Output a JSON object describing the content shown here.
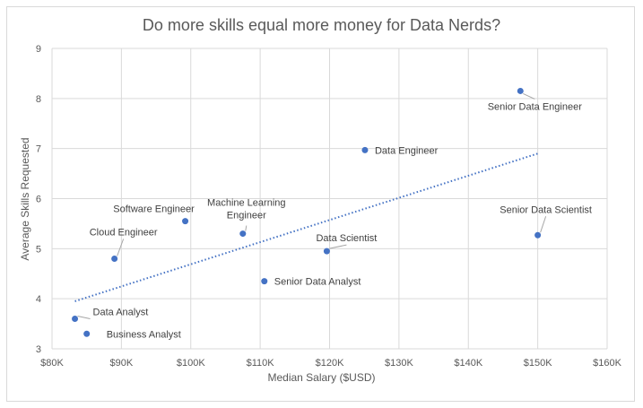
{
  "chart_data": {
    "type": "scatter",
    "title": "Do more skills equal more money for Data Nerds?",
    "xlabel": "Median Salary ($USD)",
    "ylabel": "Average Skills Requested",
    "xlim": [
      80000,
      160000
    ],
    "ylim": [
      3,
      9
    ],
    "x_ticks": [
      {
        "value": 80000,
        "label": "$80K"
      },
      {
        "value": 90000,
        "label": "$90K"
      },
      {
        "value": 100000,
        "label": "$100K"
      },
      {
        "value": 110000,
        "label": "$110K"
      },
      {
        "value": 120000,
        "label": "$120K"
      },
      {
        "value": 130000,
        "label": "$130K"
      },
      {
        "value": 140000,
        "label": "$140K"
      },
      {
        "value": 150000,
        "label": "$150K"
      },
      {
        "value": 160000,
        "label": "$160K"
      }
    ],
    "y_ticks": [
      {
        "value": 3,
        "label": "3"
      },
      {
        "value": 4,
        "label": "4"
      },
      {
        "value": 5,
        "label": "5"
      },
      {
        "value": 6,
        "label": "6"
      },
      {
        "value": 7,
        "label": "7"
      },
      {
        "value": 8,
        "label": "8"
      },
      {
        "value": 9,
        "label": "9"
      }
    ],
    "grid": true,
    "points": [
      {
        "label": "Data Analyst",
        "x": 83300,
        "y": 3.6
      },
      {
        "label": "Business Analyst",
        "x": 85000,
        "y": 3.3
      },
      {
        "label": "Cloud Engineer",
        "x": 89000,
        "y": 4.8
      },
      {
        "label": "Software Engineer",
        "x": 99200,
        "y": 5.55
      },
      {
        "label": "Machine Learning Engineer",
        "x": 107500,
        "y": 5.3
      },
      {
        "label": "Senior Data Analyst",
        "x": 110600,
        "y": 4.35
      },
      {
        "label": "Data Scientist",
        "x": 119600,
        "y": 4.95
      },
      {
        "label": "Data Engineer",
        "x": 125100,
        "y": 6.97
      },
      {
        "label": "Senior Data Engineer",
        "x": 147500,
        "y": 8.15
      },
      {
        "label": "Senior Data Scientist",
        "x": 150000,
        "y": 5.27
      }
    ],
    "trendline": {
      "type": "linear",
      "style": "dotted",
      "from": {
        "x": 83300,
        "y": 3.95
      },
      "to": {
        "x": 150000,
        "y": 6.9
      }
    },
    "colors": {
      "marker": "#4472c4",
      "trendline": "#4472c4",
      "grid": "#d9d9d9",
      "text": "#595959"
    }
  }
}
